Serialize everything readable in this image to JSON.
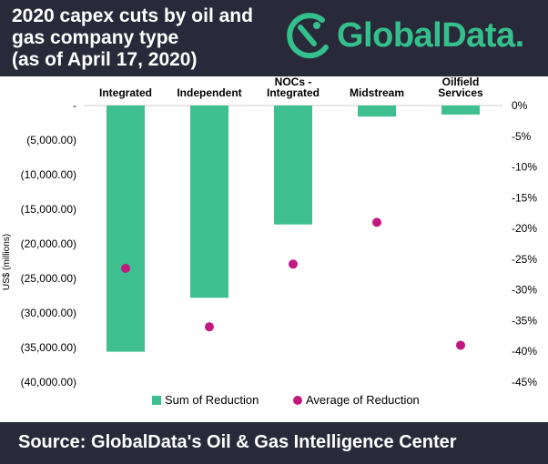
{
  "header": {
    "title_lines": [
      "2020 capex cuts by oil and",
      "gas company type",
      "(as of April 17, 2020)"
    ],
    "logo_text": "GlobalData."
  },
  "footer": {
    "source": "Source: GlobalData's Oil & Gas Intelligence Center"
  },
  "colors": {
    "header_bg": "#282a3a",
    "bar": "#3dbf8f",
    "dot": "#c2187f",
    "logo": "#34c08c"
  },
  "chart_data": {
    "type": "bar",
    "title": "2020 capex cuts by oil and gas company type (as of April 17, 2020)",
    "categories": [
      "Integrated",
      "Independent",
      "NOCs - Integrated",
      "Midstream",
      "Oilfield Services"
    ],
    "category_labels": [
      [
        "Integrated"
      ],
      [
        "Independent"
      ],
      [
        "NOCs -",
        "Integrated"
      ],
      [
        "Midstream"
      ],
      [
        "Oilfield",
        "Services"
      ]
    ],
    "ylabel": "US$ (millions)",
    "ylim": [
      -40000,
      0
    ],
    "y_ticks": [
      0,
      -5000,
      -10000,
      -15000,
      -20000,
      -25000,
      -30000,
      -35000,
      -40000
    ],
    "y_tick_labels": [
      "-",
      "(5,000.00)",
      "(10,000.00)",
      "(15,000.00)",
      "(20,000.00)",
      "(25,000.00)",
      "(30,000.00)",
      "(35,000.00)",
      "(40,000.00)"
    ],
    "y2lim": [
      -45,
      0
    ],
    "y2_ticks": [
      0,
      -5,
      -10,
      -15,
      -20,
      -25,
      -30,
      -35,
      -40,
      -45
    ],
    "y2_tick_labels": [
      "0%",
      "-5%",
      "-10%",
      "-15%",
      "-20%",
      "-25%",
      "-30%",
      "-35%",
      "-40%",
      "-45%"
    ],
    "series": [
      {
        "name": "Sum of Reduction",
        "kind": "bar",
        "axis": "left",
        "values": [
          -35600,
          -27800,
          -17200,
          -1600,
          -1300
        ]
      },
      {
        "name": "Average of Reduction",
        "kind": "dot",
        "axis": "right",
        "values": [
          -26.5,
          -36,
          -25.8,
          -19,
          -39
        ]
      }
    ],
    "legend": [
      "Sum of Reduction",
      "Average of Reduction"
    ],
    "legend_position": "bottom"
  }
}
